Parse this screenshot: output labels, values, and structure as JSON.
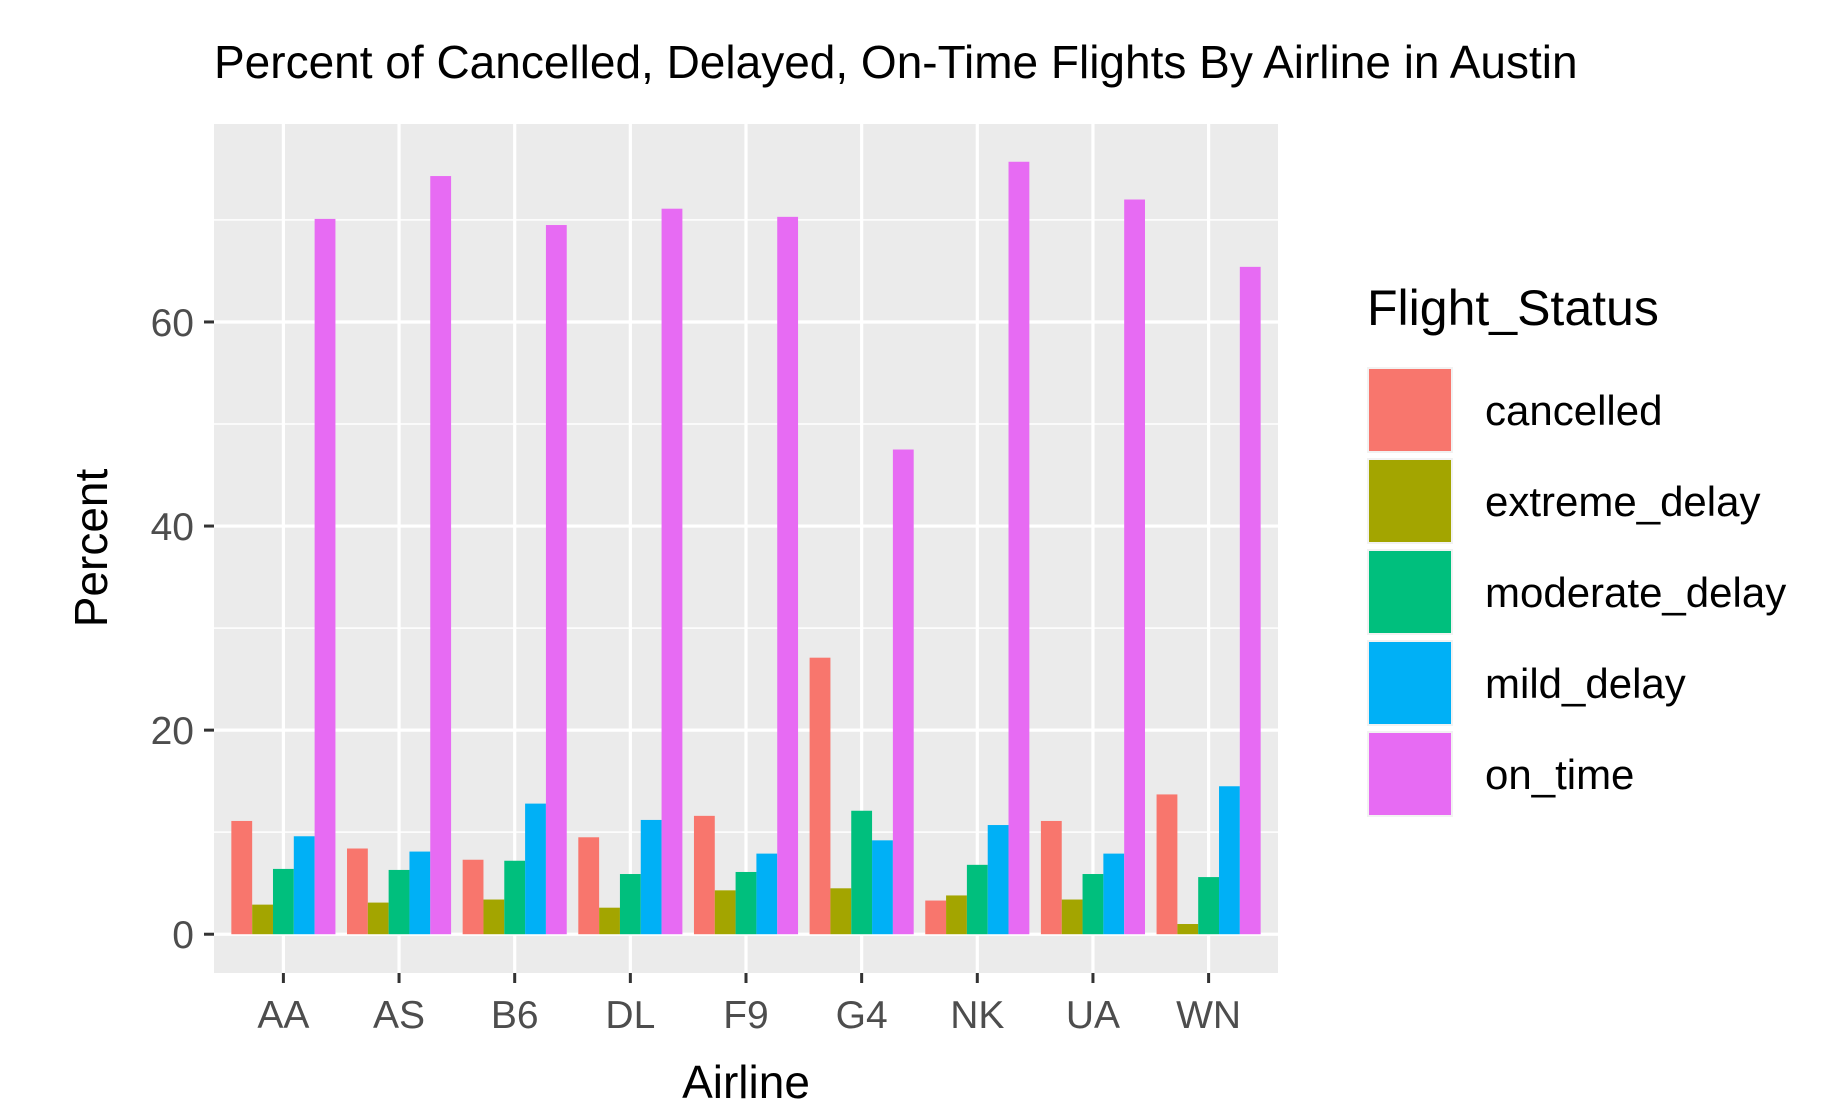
{
  "chart_data": {
    "type": "bar",
    "title": "Percent of Cancelled, Delayed, On-Time Flights By Airline in Austin",
    "xlabel": "Airline",
    "ylabel": "Percent",
    "categories": [
      "AA",
      "AS",
      "B6",
      "DL",
      "F9",
      "G4",
      "NK",
      "UA",
      "WN"
    ],
    "ylim": [
      -3.8,
      79.4
    ],
    "yticks": [
      0,
      20,
      40,
      60
    ],
    "grid": true,
    "legend": {
      "title": "Flight_Status",
      "placement": "right"
    },
    "series": [
      {
        "name": "cancelled",
        "color": "#F8766D",
        "values": [
          11.1,
          8.4,
          7.3,
          9.5,
          11.6,
          27.1,
          3.3,
          11.1,
          13.7
        ]
      },
      {
        "name": "extreme_delay",
        "color": "#A3A500",
        "values": [
          2.9,
          3.1,
          3.4,
          2.6,
          4.3,
          4.5,
          3.8,
          3.4,
          1.0
        ]
      },
      {
        "name": "moderate_delay",
        "color": "#00BF7D",
        "values": [
          6.4,
          6.3,
          7.2,
          5.9,
          6.1,
          12.1,
          6.8,
          5.9,
          5.6
        ]
      },
      {
        "name": "mild_delay",
        "color": "#00B0F6",
        "values": [
          9.6,
          8.1,
          12.8,
          11.2,
          7.9,
          9.2,
          10.7,
          7.9,
          14.5
        ]
      },
      {
        "name": "on_time",
        "color": "#E76BF3",
        "values": [
          70.1,
          74.3,
          69.5,
          71.1,
          70.3,
          47.5,
          75.7,
          72.0,
          65.4
        ]
      }
    ]
  }
}
